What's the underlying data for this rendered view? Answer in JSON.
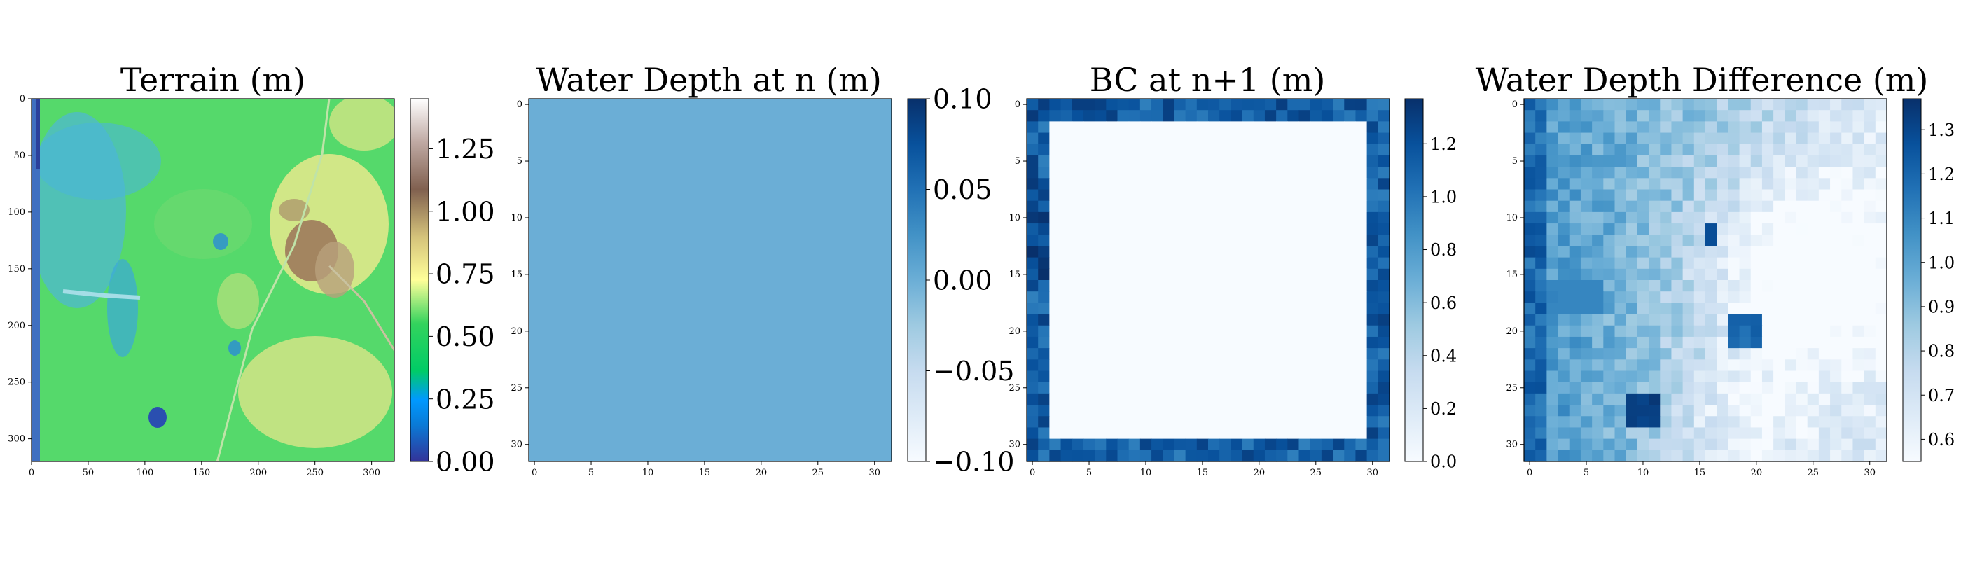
{
  "chart_data": [
    {
      "type": "heatmap",
      "title": "Terrain (m)",
      "x_ticks": [
        "0",
        "50",
        "100",
        "150",
        "200",
        "250",
        "300"
      ],
      "y_ticks": [
        "0",
        "50",
        "100",
        "150",
        "200",
        "250",
        "300"
      ],
      "xlim": [
        0,
        320
      ],
      "ylim": [
        0,
        320
      ],
      "colormap": "terrain",
      "color_range": [
        0.0,
        1.45
      ],
      "colorbar_ticks": [
        "0.00",
        "0.25",
        "0.50",
        "0.75",
        "1.00",
        "1.25"
      ],
      "colorbar_tick_values": [
        0.0,
        0.25,
        0.5,
        0.75,
        1.0,
        1.25
      ]
    },
    {
      "type": "heatmap",
      "title": "Water Depth at n (m)",
      "x_ticks": [
        "0",
        "5",
        "10",
        "15",
        "20",
        "25",
        "30"
      ],
      "y_ticks": [
        "0",
        "5",
        "10",
        "15",
        "20",
        "25",
        "30"
      ],
      "xlim": [
        0,
        32
      ],
      "ylim": [
        0,
        32
      ],
      "colormap": "Blues",
      "uniform_value": 0.0,
      "color_range": [
        -0.1,
        0.1
      ],
      "colorbar_ticks": [
        "0.10",
        "0.05",
        "0.00",
        "−0.05",
        "−0.10"
      ],
      "colorbar_tick_values": [
        0.1,
        0.05,
        0.0,
        -0.05,
        -0.1
      ]
    },
    {
      "type": "heatmap",
      "title": "BC at n+1 (m)",
      "x_ticks": [
        "0",
        "5",
        "10",
        "15",
        "20",
        "25",
        "30"
      ],
      "y_ticks": [
        "0",
        "5",
        "10",
        "15",
        "20",
        "25",
        "30"
      ],
      "xlim": [
        0,
        32
      ],
      "ylim": [
        0,
        32
      ],
      "colormap": "Blues",
      "interior_value": 0.0,
      "border_width_cells": 2,
      "color_range": [
        0.0,
        1.37
      ],
      "colorbar_ticks": [
        "1.2",
        "1.0",
        "0.8",
        "0.6",
        "0.4",
        "0.2",
        "0.0"
      ],
      "colorbar_tick_values": [
        1.2,
        1.0,
        0.8,
        0.6,
        0.4,
        0.2,
        0.0
      ]
    },
    {
      "type": "heatmap",
      "title": "Water Depth Difference (m)",
      "x_ticks": [
        "0",
        "5",
        "10",
        "15",
        "20",
        "25",
        "30"
      ],
      "y_ticks": [
        "0",
        "5",
        "10",
        "15",
        "20",
        "25",
        "30"
      ],
      "xlim": [
        0,
        32
      ],
      "ylim": [
        0,
        32
      ],
      "colormap": "Blues",
      "color_range": [
        0.55,
        1.37
      ],
      "colorbar_ticks": [
        "1.3",
        "1.2",
        "1.1",
        "1.0",
        "0.9",
        "0.8",
        "0.7",
        "0.6"
      ],
      "colorbar_tick_values": [
        1.3,
        1.2,
        1.1,
        1.0,
        0.9,
        0.8,
        0.7,
        0.6
      ]
    }
  ]
}
